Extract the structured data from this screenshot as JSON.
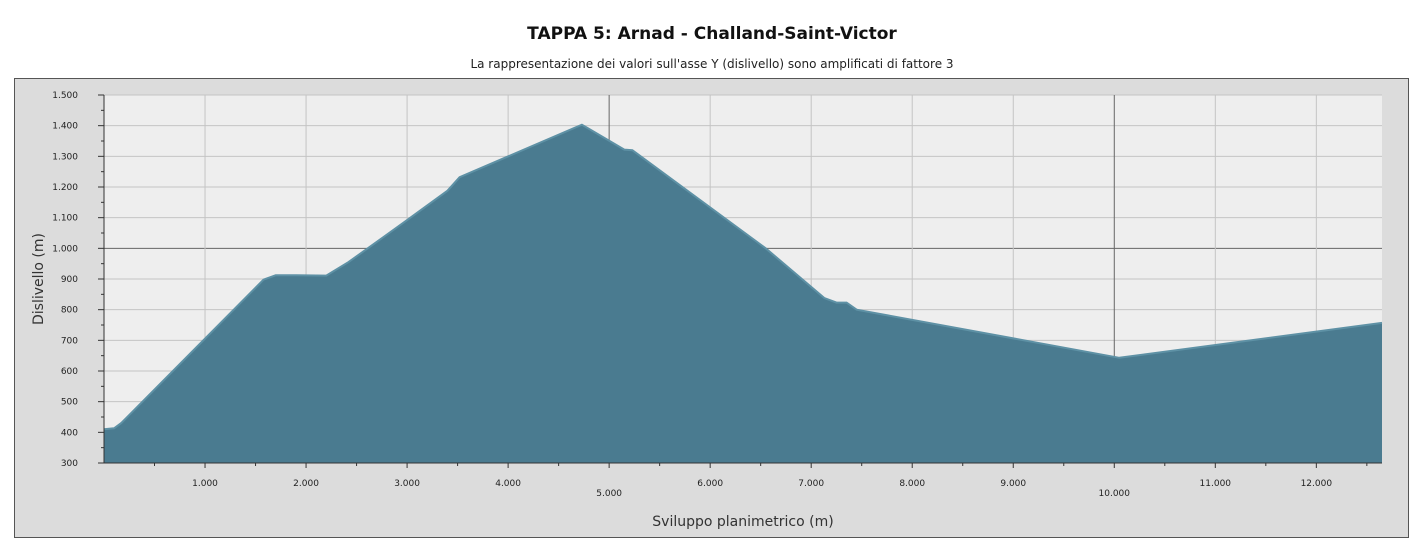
{
  "chart_data": {
    "type": "area",
    "title": "TAPPA 5: Arnad - Challand-Saint-Victor",
    "subtitle": "La rappresentazione dei valori sull'asse Y (dislivello) sono amplificati di fattore 3",
    "xlabel": "Sviluppo planimetrico (m)",
    "ylabel": "Dislivello (m)",
    "xlim": [
      0,
      12650
    ],
    "ylim": [
      300,
      1500
    ],
    "xticks": [
      {
        "value": 1000,
        "label": "1.000"
      },
      {
        "value": 2000,
        "label": "2.000"
      },
      {
        "value": 3000,
        "label": "3.000"
      },
      {
        "value": 4000,
        "label": "4.000"
      },
      {
        "value": 5000,
        "label": "5.000"
      },
      {
        "value": 6000,
        "label": "6.000"
      },
      {
        "value": 7000,
        "label": "7.000"
      },
      {
        "value": 8000,
        "label": "8.000"
      },
      {
        "value": 9000,
        "label": "9.000"
      },
      {
        "value": 10000,
        "label": "10.000"
      },
      {
        "value": 11000,
        "label": "11.000"
      },
      {
        "value": 12000,
        "label": "12.000"
      }
    ],
    "yticks": [
      {
        "value": 300,
        "label": "300"
      },
      {
        "value": 400,
        "label": "400"
      },
      {
        "value": 500,
        "label": "500"
      },
      {
        "value": 600,
        "label": "600"
      },
      {
        "value": 700,
        "label": "700"
      },
      {
        "value": 800,
        "label": "800"
      },
      {
        "value": 900,
        "label": "900"
      },
      {
        "value": 1000,
        "label": "1.000"
      },
      {
        "value": 1100,
        "label": "1.100"
      },
      {
        "value": 1200,
        "label": "1.200"
      },
      {
        "value": 1300,
        "label": "1.300"
      },
      {
        "value": 1400,
        "label": "1.400"
      },
      {
        "value": 1500,
        "label": "1.500"
      }
    ],
    "major_x": [
      5000,
      10000
    ],
    "major_y": [
      1000
    ],
    "grid": true,
    "fill_color": "#4a7b90",
    "line_color": "#5e91a5",
    "series": [
      {
        "x": [
          0,
          100,
          170,
          1580,
          1700,
          1900,
          2200,
          2420,
          3000,
          3400,
          3520,
          4730,
          5150,
          5230,
          6550,
          7130,
          7250,
          7350,
          7450,
          10050,
          12650
        ],
        "y": [
          410,
          413,
          430,
          898,
          912,
          912,
          911,
          955,
          1092,
          1188,
          1232,
          1403,
          1322,
          1320,
          1000,
          838,
          823,
          823,
          800,
          643,
          757
        ]
      }
    ]
  }
}
